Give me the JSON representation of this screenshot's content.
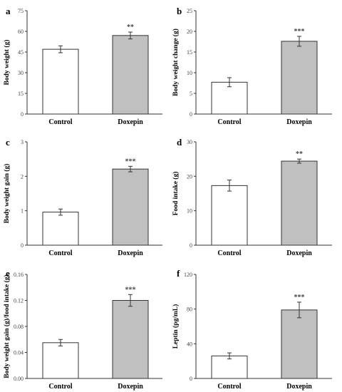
{
  "chart_data": [
    {
      "panel": "a",
      "type": "bar",
      "categories": [
        "Control",
        "Doxepin"
      ],
      "values": [
        47,
        57
      ],
      "errors": [
        2.5,
        2.5
      ],
      "significance": [
        "",
        "**"
      ],
      "ylabel": "Body weight (g)",
      "ylim": [
        0,
        75
      ],
      "yticks": [
        "0",
        "15",
        "30",
        "45",
        "60",
        "75"
      ],
      "bar_colors": [
        "#ffffff",
        "#c0c0c0"
      ]
    },
    {
      "panel": "b",
      "type": "bar",
      "categories": [
        "Control",
        "Doxepin"
      ],
      "values": [
        7.7,
        17.6
      ],
      "errors": [
        1.1,
        1.2
      ],
      "significance": [
        "",
        "***"
      ],
      "ylabel": "Body weight change (g)",
      "ylim": [
        0,
        25
      ],
      "yticks": [
        "0",
        "5",
        "10",
        "15",
        "20",
        "25"
      ],
      "bar_colors": [
        "#ffffff",
        "#c0c0c0"
      ]
    },
    {
      "panel": "c",
      "type": "bar",
      "categories": [
        "Control",
        "Doxepin"
      ],
      "values": [
        0.96,
        2.21
      ],
      "errors": [
        0.09,
        0.08
      ],
      "significance": [
        "",
        "***"
      ],
      "ylabel": "Body weight gain (g)",
      "ylim": [
        0,
        3
      ],
      "yticks": [
        "0",
        "1",
        "2",
        "3"
      ],
      "bar_colors": [
        "#ffffff",
        "#c0c0c0"
      ]
    },
    {
      "panel": "d",
      "type": "bar",
      "categories": [
        "Control",
        "Doxepin"
      ],
      "values": [
        17.3,
        24.4
      ],
      "errors": [
        1.6,
        0.6
      ],
      "significance": [
        "",
        "**"
      ],
      "ylabel": "Food intake (g)",
      "ylim": [
        0,
        30
      ],
      "yticks": [
        "0",
        "10",
        "20",
        "30"
      ],
      "bar_colors": [
        "#ffffff",
        "#c0c0c0"
      ]
    },
    {
      "panel": "e",
      "type": "bar",
      "categories": [
        "Control",
        "Doxepin"
      ],
      "values": [
        0.055,
        0.12
      ],
      "errors": [
        0.005,
        0.009
      ],
      "significance": [
        "",
        "***"
      ],
      "ylabel": "Body weight gain (g)/food intake (g)",
      "ylim": [
        0,
        0.16
      ],
      "yticks": [
        "0.00",
        "0.04",
        "0.08",
        "0.12",
        "0.16"
      ],
      "bar_colors": [
        "#ffffff",
        "#c0c0c0"
      ]
    },
    {
      "panel": "f",
      "type": "bar",
      "categories": [
        "Control",
        "Doxepin"
      ],
      "values": [
        26,
        79
      ],
      "errors": [
        3.5,
        9
      ],
      "significance": [
        "",
        "***"
      ],
      "ylabel": "Leptin (pg/mL)",
      "ylim": [
        0,
        120
      ],
      "yticks": [
        "0",
        "40",
        "80",
        "120"
      ],
      "bar_colors": [
        "#ffffff",
        "#c0c0c0"
      ]
    }
  ]
}
